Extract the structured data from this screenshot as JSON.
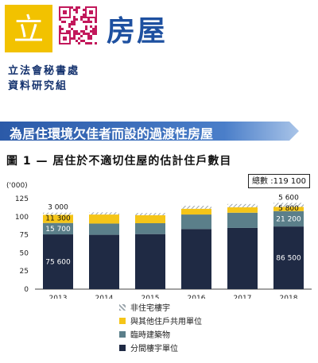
{
  "header": {
    "logo_text": "立",
    "doc_type": "房屋",
    "org_line1": "立法會秘書處",
    "org_line2": "資料研究組"
  },
  "banner": {
    "title": "為居住環境欠佳者而設的過渡性房屋"
  },
  "figure": {
    "title": "圖 1 — 居住於不適切住屋的估計住戶數目",
    "total_label": "總數 :119 100"
  },
  "chart_data": {
    "type": "bar",
    "stacked": true,
    "categories": [
      "2013",
      "2014",
      "2015",
      "2016",
      "2017",
      "2018"
    ],
    "ylabel": "('000)",
    "ylim": [
      0,
      125
    ],
    "yticks": [
      0,
      25,
      50,
      75,
      100,
      125
    ],
    "grid": false,
    "legend_position": "bottom",
    "series": [
      {
        "name": "分間樓宇單位",
        "color": "#1f2a44",
        "values": [
          75.6,
          75.0,
          76.0,
          83.0,
          84.5,
          86.5
        ]
      },
      {
        "name": "臨時建築物",
        "color": "#5b7f8a",
        "values": [
          15.7,
          15.5,
          15.0,
          20.0,
          21.0,
          21.2
        ]
      },
      {
        "name": "與其他住戶共用單位",
        "color": "#f5c518",
        "values": [
          11.3,
          12.5,
          11.0,
          8.0,
          7.5,
          5.8
        ]
      },
      {
        "name": "非住宅樓宇",
        "color": "#9aa4ab",
        "hatched": true,
        "values": [
          3.0,
          3.0,
          3.0,
          4.0,
          4.5,
          5.6
        ]
      }
    ],
    "data_labels": [
      {
        "category": "2013",
        "series": "分間樓宇單位",
        "text": "75 600"
      },
      {
        "category": "2013",
        "series": "臨時建築物",
        "text": "15 700"
      },
      {
        "category": "2013",
        "series": "與其他住戶共用單位",
        "text": "11 300"
      },
      {
        "category": "2013",
        "series": "非住宅樓宇",
        "text": "3 000"
      },
      {
        "category": "2018",
        "series": "分間樓宇單位",
        "text": "86 500"
      },
      {
        "category": "2018",
        "series": "臨時建築物",
        "text": "21 200"
      },
      {
        "category": "2018",
        "series": "與其他住戶共用單位",
        "text": "5 800"
      },
      {
        "category": "2018",
        "series": "非住宅樓宇",
        "text": "5 600"
      }
    ]
  }
}
